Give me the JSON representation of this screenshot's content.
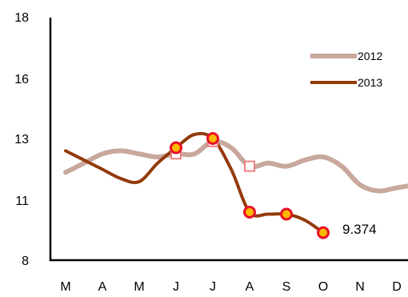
{
  "chart_data": {
    "type": "line",
    "categories": [
      "M",
      "A",
      "M",
      "J",
      "J",
      "A",
      "S",
      "O",
      "N",
      "D"
    ],
    "y_ticks": [
      "8",
      "11",
      "13",
      "16",
      "18"
    ],
    "series": [
      {
        "name": "2012",
        "color": "#c8a89c",
        "x": [
          0,
          0.5,
          1,
          1.5,
          2,
          2.5,
          3,
          3.5,
          4,
          4.5,
          5,
          5.5,
          6,
          6.5,
          7,
          7.5,
          8,
          8.5,
          9,
          9.5
        ],
        "values": [
          11.9,
          12.2,
          12.5,
          12.6,
          12.5,
          12.4,
          12.5,
          12.5,
          12.9,
          12.7,
          12.1,
          12.2,
          12.1,
          12.3,
          12.4,
          12.1,
          11.5,
          11.3,
          11.4,
          11.5
        ],
        "markers": [
          {
            "x": 3,
            "value": 12.5
          },
          {
            "x": 4,
            "value": 12.9
          },
          {
            "x": 5,
            "value": 12.1
          }
        ]
      },
      {
        "name": "2013",
        "color": "#943a0c",
        "x": [
          0,
          0.5,
          1,
          1.5,
          2,
          2.5,
          3,
          3.5,
          4,
          4.5,
          5,
          5.5,
          6,
          6.5,
          7
        ],
        "values": [
          12.6,
          12.3,
          12.0,
          11.7,
          11.6,
          12.2,
          12.7,
          13.2,
          13.0,
          12.0,
          10.4,
          10.3,
          10.3,
          10.0,
          9.374
        ],
        "markers": [
          {
            "x": 3,
            "value": 12.7
          },
          {
            "x": 4,
            "value": 13.0
          },
          {
            "x": 5,
            "value": 10.4
          },
          {
            "x": 6,
            "value": 10.3
          },
          {
            "x": 7,
            "value": 9.374
          }
        ]
      }
    ],
    "annotation": {
      "text": "9.374",
      "x": 7,
      "value": 9.374
    },
    "legend": {
      "position": "top-right",
      "entries": [
        "2012",
        "2013"
      ]
    },
    "grid": false,
    "xlabel": "",
    "ylabel": ""
  }
}
